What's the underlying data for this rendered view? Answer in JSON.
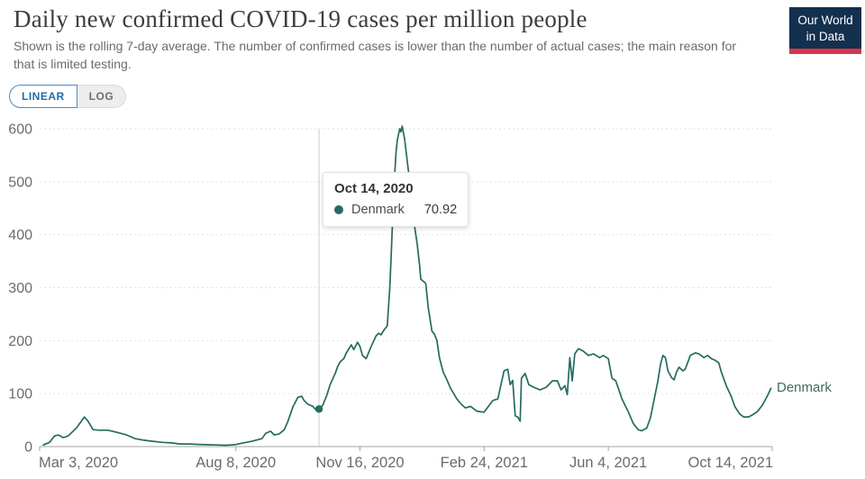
{
  "header": {
    "title": "Daily new confirmed COVID-19 cases per million people",
    "subtitle": "Shown is the rolling 7-day average. The number of confirmed cases is lower than the number of actual cases; the main reason for that is limited testing."
  },
  "logo": {
    "line1": "Our World",
    "line2": "in Data"
  },
  "controls": {
    "linear_label": "LINEAR",
    "log_label": "LOG"
  },
  "tooltip": {
    "date": "Oct 14, 2020",
    "series": "Denmark",
    "value": "70.92"
  },
  "colors": {
    "series": "#256b5f",
    "logo_navy": "#13304f",
    "logo_red": "#d8354b",
    "linear_blue": "#1d6ca8"
  },
  "chart_data": {
    "type": "line",
    "title": "Daily new confirmed COVID-19 cases per million people",
    "xlabel": "",
    "ylabel": "",
    "grid": "horizontal-dashed",
    "legend_position": "end-of-line-label",
    "ylim": [
      0,
      600
    ],
    "y_ticks": [
      0,
      100,
      200,
      300,
      400,
      500,
      600
    ],
    "xlim_days": [
      0,
      590
    ],
    "x_ticks": [
      {
        "label": "Mar 3, 2020",
        "day": 0
      },
      {
        "label": "Aug 8, 2020",
        "day": 158
      },
      {
        "label": "Nov 16, 2020",
        "day": 258
      },
      {
        "label": "Feb 24, 2021",
        "day": 358
      },
      {
        "label": "Jun 4, 2021",
        "day": 458
      },
      {
        "label": "Oct 14, 2021",
        "day": 590
      }
    ],
    "end_label": "Denmark",
    "highlight": {
      "date": "Oct 14, 2020",
      "day": 225,
      "value": 70.92
    },
    "series": [
      {
        "name": "Denmark",
        "color": "#256b5f",
        "points": [
          [
            3,
            3
          ],
          [
            8,
            8
          ],
          [
            12,
            20
          ],
          [
            15,
            22
          ],
          [
            19,
            17
          ],
          [
            23,
            20
          ],
          [
            30,
            36
          ],
          [
            36,
            56
          ],
          [
            39,
            48
          ],
          [
            43,
            32
          ],
          [
            48,
            31
          ],
          [
            55,
            31
          ],
          [
            62,
            27
          ],
          [
            70,
            22
          ],
          [
            77,
            15
          ],
          [
            84,
            12
          ],
          [
            91,
            10
          ],
          [
            99,
            8
          ],
          [
            106,
            7
          ],
          [
            113,
            5
          ],
          [
            121,
            5
          ],
          [
            128,
            4
          ],
          [
            135,
            3.5
          ],
          [
            142,
            3
          ],
          [
            150,
            2.5
          ],
          [
            157,
            3.5
          ],
          [
            164,
            7
          ],
          [
            171,
            10
          ],
          [
            179,
            15
          ],
          [
            182,
            25
          ],
          [
            186,
            29
          ],
          [
            189,
            22
          ],
          [
            193,
            24
          ],
          [
            197,
            32
          ],
          [
            200,
            48
          ],
          [
            204,
            75
          ],
          [
            208,
            93
          ],
          [
            211,
            95
          ],
          [
            213,
            87
          ],
          [
            216,
            80
          ],
          [
            220,
            76
          ],
          [
            223,
            68
          ],
          [
            225,
            70.92
          ],
          [
            228,
            78
          ],
          [
            231,
            95
          ],
          [
            234,
            117
          ],
          [
            238,
            138
          ],
          [
            240,
            151
          ],
          [
            242,
            160
          ],
          [
            245,
            166
          ],
          [
            247,
            177
          ],
          [
            251,
            192
          ],
          [
            253,
            183
          ],
          [
            256,
            197
          ],
          [
            258,
            189
          ],
          [
            260,
            172
          ],
          [
            263,
            166
          ],
          [
            267,
            189
          ],
          [
            271,
            209
          ],
          [
            273,
            214
          ],
          [
            275,
            211
          ],
          [
            277,
            219
          ],
          [
            280,
            228
          ],
          [
            282,
            300
          ],
          [
            283,
            355
          ],
          [
            284,
            410
          ],
          [
            285,
            465
          ],
          [
            286,
            515
          ],
          [
            287,
            555
          ],
          [
            288,
            578
          ],
          [
            290,
            600
          ],
          [
            291,
            594
          ],
          [
            292,
            605
          ],
          [
            294,
            580
          ],
          [
            296,
            540
          ],
          [
            298,
            502
          ],
          [
            300,
            458
          ],
          [
            302,
            416
          ],
          [
            304,
            384
          ],
          [
            306,
            342
          ],
          [
            307,
            316
          ],
          [
            309,
            312
          ],
          [
            311,
            308
          ],
          [
            313,
            262
          ],
          [
            316,
            218
          ],
          [
            318,
            212
          ],
          [
            320,
            200
          ],
          [
            322,
            168
          ],
          [
            325,
            141
          ],
          [
            328,
            126
          ],
          [
            331,
            110
          ],
          [
            336,
            90
          ],
          [
            340,
            79
          ],
          [
            343,
            73
          ],
          [
            347,
            76
          ],
          [
            352,
            67
          ],
          [
            358,
            65
          ],
          [
            365,
            87
          ],
          [
            369,
            90
          ],
          [
            374,
            143
          ],
          [
            377,
            146
          ],
          [
            379,
            117
          ],
          [
            381,
            125
          ],
          [
            383,
            58
          ],
          [
            385,
            56
          ],
          [
            387,
            48
          ],
          [
            388,
            129
          ],
          [
            391,
            138
          ],
          [
            394,
            117
          ],
          [
            398,
            112
          ],
          [
            403,
            107
          ],
          [
            408,
            112
          ],
          [
            413,
            124
          ],
          [
            417,
            124
          ],
          [
            420,
            107
          ],
          [
            423,
            115
          ],
          [
            425,
            98
          ],
          [
            427,
            168
          ],
          [
            429,
            124
          ],
          [
            431,
            175
          ],
          [
            434,
            185
          ],
          [
            438,
            180
          ],
          [
            442,
            172
          ],
          [
            446,
            175
          ],
          [
            451,
            168
          ],
          [
            454,
            172
          ],
          [
            458,
            166
          ],
          [
            461,
            129
          ],
          [
            464,
            124
          ],
          [
            469,
            90
          ],
          [
            474,
            66
          ],
          [
            478,
            44
          ],
          [
            482,
            32
          ],
          [
            485,
            30
          ],
          [
            489,
            35
          ],
          [
            492,
            55
          ],
          [
            495,
            90
          ],
          [
            498,
            124
          ],
          [
            500,
            155
          ],
          [
            502,
            172
          ],
          [
            504,
            168
          ],
          [
            506,
            143
          ],
          [
            509,
            130
          ],
          [
            511,
            126
          ],
          [
            513,
            141
          ],
          [
            515,
            150
          ],
          [
            518,
            143
          ],
          [
            520,
            146
          ],
          [
            524,
            172
          ],
          [
            528,
            177
          ],
          [
            531,
            175
          ],
          [
            535,
            168
          ],
          [
            538,
            172
          ],
          [
            541,
            166
          ],
          [
            544,
            163
          ],
          [
            547,
            158
          ],
          [
            549,
            141
          ],
          [
            553,
            115
          ],
          [
            557,
            95
          ],
          [
            560,
            75
          ],
          [
            564,
            61
          ],
          [
            567,
            56
          ],
          [
            571,
            56
          ],
          [
            575,
            61
          ],
          [
            578,
            66
          ],
          [
            582,
            78
          ],
          [
            586,
            95
          ],
          [
            589,
            110
          ]
        ]
      }
    ]
  }
}
